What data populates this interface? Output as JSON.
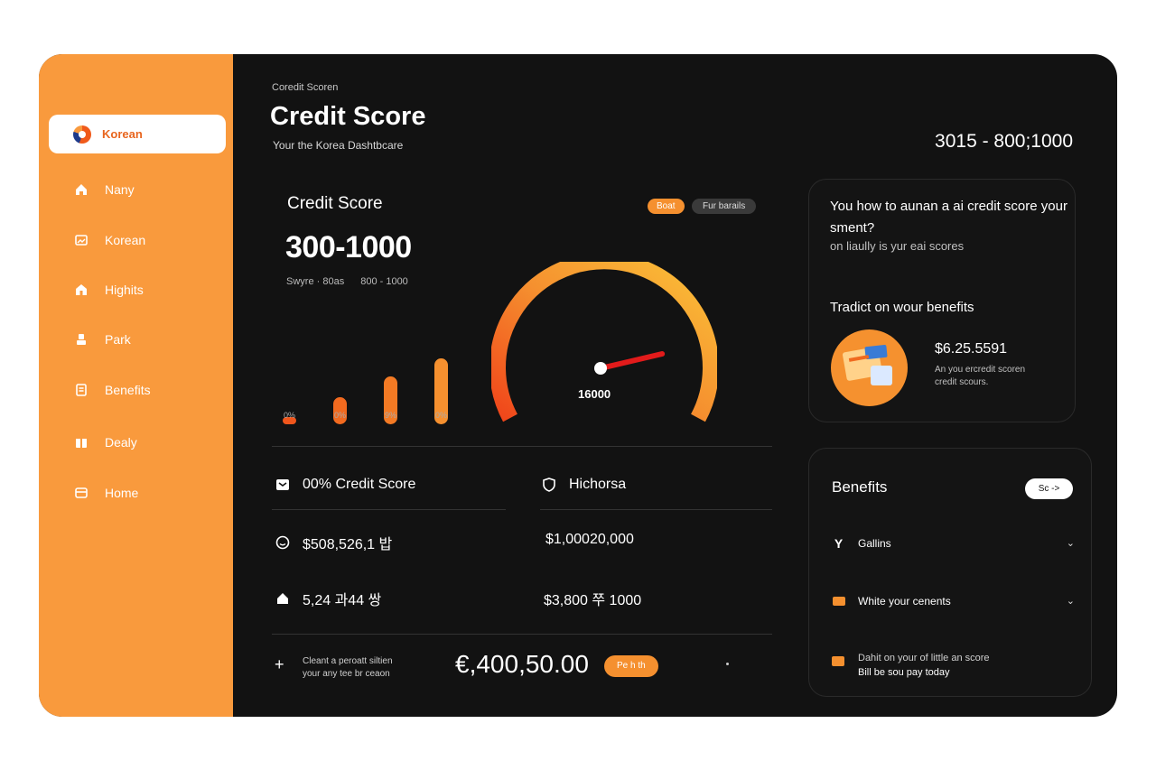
{
  "sidebar": {
    "active": {
      "label": "Korean",
      "icon": "brand-logo-icon"
    },
    "items": [
      {
        "label": "Nany",
        "icon": "home-icon"
      },
      {
        "label": "Korean",
        "icon": "image-icon"
      },
      {
        "label": "Highits",
        "icon": "house-icon"
      },
      {
        "label": "Park",
        "icon": "user-icon"
      },
      {
        "label": "Benefits",
        "icon": "document-icon"
      },
      {
        "label": "Dealy",
        "icon": "gift-icon"
      },
      {
        "label": "Home",
        "icon": "card-icon"
      }
    ]
  },
  "header": {
    "breadcrumb": "Coredit Scoren",
    "title": "Credit Score",
    "subtitle": "Your the Korea Dashtbcare",
    "range": "3015 - 800;1000"
  },
  "score_card": {
    "title": "Credit Score",
    "range": "300-1000",
    "sub_left": "Swyre · 80as",
    "sub_right": "800 - 1000",
    "pill_active": "Boat",
    "pill_inactive": "Fur barails",
    "bars": [
      {
        "label": "0%",
        "value": 0.09
      },
      {
        "label": "0%",
        "value": 0.4
      },
      {
        "label": "9%",
        "value": 0.72
      },
      {
        "label": "0%",
        "value": 0.98
      }
    ],
    "gauge_value": "16000",
    "gauge_needle": 0.82
  },
  "stats": [
    {
      "icon": "chart-icon",
      "text": "00% Credit Score"
    },
    {
      "icon": "shield-icon",
      "text": "Hichorsa"
    },
    {
      "icon": "smile-icon",
      "text": "$508,526,1 밥"
    },
    {
      "icon": "",
      "text": "$1,00020,000"
    },
    {
      "icon": "home-icon",
      "text": "5,24 과44 쌍"
    },
    {
      "icon": "",
      "text": "$3,800 쭈 1000"
    }
  ],
  "footer": {
    "line1": "Cleant a peroatt siltien",
    "line2": "your any tee br ceaon",
    "amount": "€,400,50.00",
    "button": "Pe h th"
  },
  "info_card": {
    "question": "You how to aunan a ai credit score your sment?",
    "subtext": "on liaully is yur eai scores",
    "heading": "Tradict on wour benefits",
    "amount": "$6.25.5591",
    "note_line1": "An you ercredit scoren",
    "note_line2": "credit scours."
  },
  "benefits_card": {
    "title": "Benefits",
    "button": "Sc ->",
    "rows": [
      {
        "icon": "y-icon",
        "label": "Gallins"
      },
      {
        "icon": "wallet-icon",
        "label": "White your cenents"
      }
    ],
    "last_line1": "Dahit on your of little an score",
    "last_line2": "Bill be sou pay today"
  },
  "colors": {
    "accent": "#f99a3d",
    "background": "#121212",
    "needle": "#e21b1b"
  }
}
